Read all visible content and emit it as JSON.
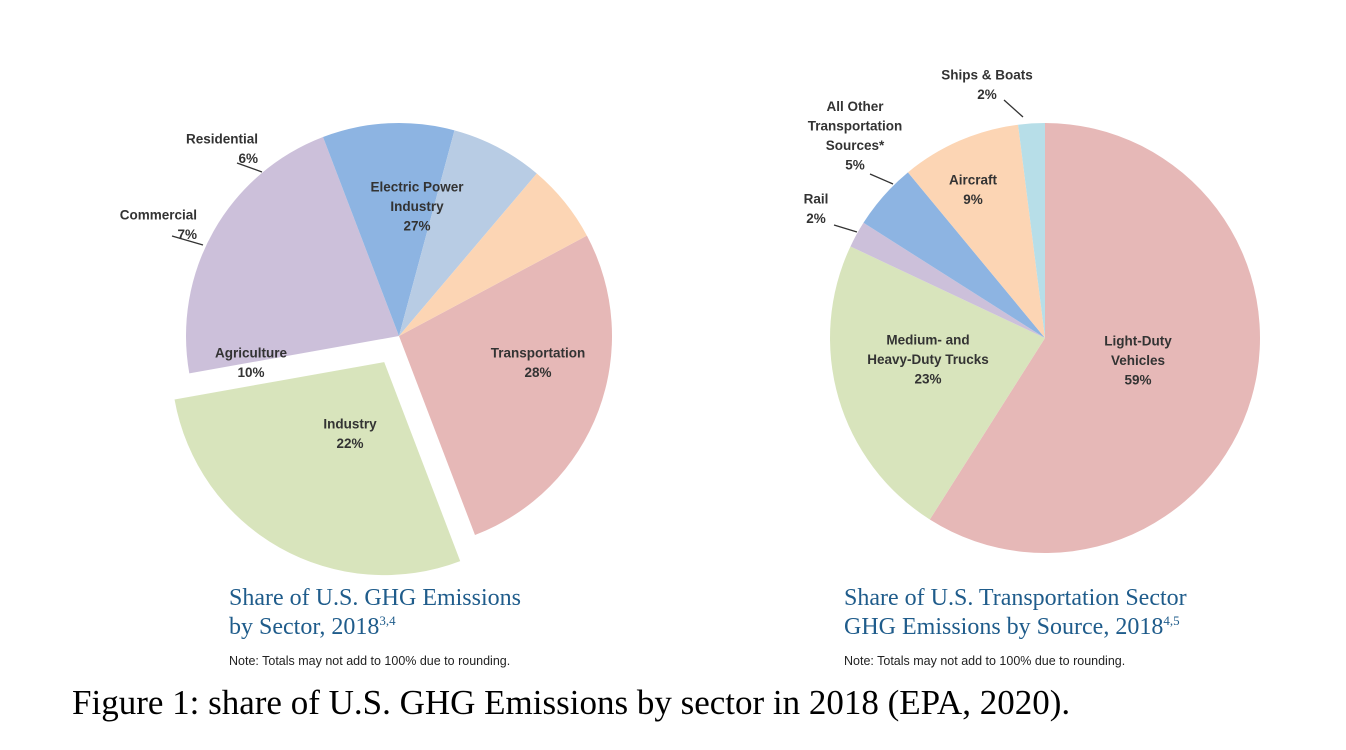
{
  "chart_data": [
    {
      "type": "pie",
      "title": "Share of U.S. GHG Emissions by Sector, 2018",
      "title_line1": "Share of U.S. GHG Emissions",
      "title_line2": "by Sector, 2018",
      "title_superscript": "3,4",
      "note": "Note: Totals may not add to 100% due to rounding.",
      "exploded": "Transportation",
      "slices": [
        {
          "label": "Electric Power Industry",
          "label_lines": [
            "Electric Power",
            "Industry"
          ],
          "value": 27,
          "value_label": "27%",
          "color": "#e6b8b7"
        },
        {
          "label": "Transportation",
          "label_lines": [
            "Transportation"
          ],
          "value": 28,
          "value_label": "28%",
          "color": "#d8e4bc"
        },
        {
          "label": "Industry",
          "label_lines": [
            "Industry"
          ],
          "value": 22,
          "value_label": "22%",
          "color": "#ccc0da"
        },
        {
          "label": "Agriculture",
          "label_lines": [
            "Agriculture"
          ],
          "value": 10,
          "value_label": "10%",
          "color": "#8db4e2"
        },
        {
          "label": "Commercial",
          "label_lines": [
            "Commercial"
          ],
          "value": 7,
          "value_label": "7%",
          "color": "#b8cce4"
        },
        {
          "label": "Residential",
          "label_lines": [
            "Residential"
          ],
          "value": 6,
          "value_label": "6%",
          "color": "#fcd5b4"
        }
      ]
    },
    {
      "type": "pie",
      "title": "Share of U.S. Transportation Sector GHG Emissions by Source, 2018",
      "title_line1": "Share of U.S. Transportation Sector",
      "title_line2": "GHG Emissions by Source, 2018",
      "title_superscript": "4,5",
      "note": "Note: Totals may not add to 100% due to rounding.",
      "slices": [
        {
          "label": "Light-Duty Vehicles",
          "label_lines": [
            "Light-Duty",
            "Vehicles"
          ],
          "value": 59,
          "value_label": "59%",
          "color": "#e6b8b7"
        },
        {
          "label": "Medium- and Heavy-Duty Trucks",
          "label_lines": [
            "Medium- and",
            "Heavy-Duty Trucks"
          ],
          "value": 23,
          "value_label": "23%",
          "color": "#d8e4bc"
        },
        {
          "label": "Rail",
          "label_lines": [
            "Rail"
          ],
          "value": 2,
          "value_label": "2%",
          "color": "#ccc0da"
        },
        {
          "label": "All Other Transportation Sources*",
          "label_lines": [
            "All Other",
            "Transportation",
            "Sources*"
          ],
          "value": 5,
          "value_label": "5%",
          "color": "#8db4e2"
        },
        {
          "label": "Aircraft",
          "label_lines": [
            "Aircraft"
          ],
          "value": 9,
          "value_label": "9%",
          "color": "#fcd5b4"
        },
        {
          "label": "Ships & Boats",
          "label_lines": [
            "Ships & Boats"
          ],
          "value": 2,
          "value_label": "2%",
          "color": "#b7dee8"
        }
      ]
    }
  ],
  "caption": "Figure 1: share of U.S. GHG Emissions by sector in 2018 (EPA, 2020)."
}
